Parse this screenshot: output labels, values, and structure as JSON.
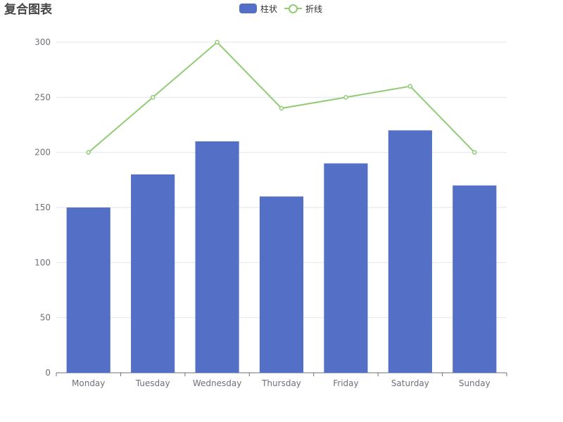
{
  "title": "复合图表",
  "legend": {
    "bar_label": "柱状",
    "line_label": "折线"
  },
  "colors": {
    "bar": "#5470c6",
    "line": "#91cc75",
    "axis": "#6e7079",
    "grid": "#e0e6f1"
  },
  "chart_data": {
    "type": "bar",
    "title": "复合图表",
    "categories": [
      "Monday",
      "Tuesday",
      "Wednesday",
      "Thursday",
      "Friday",
      "Saturday",
      "Sunday"
    ],
    "series": [
      {
        "name": "柱状",
        "type": "bar",
        "values": [
          150,
          180,
          210,
          160,
          190,
          220,
          170
        ]
      },
      {
        "name": "折线",
        "type": "line",
        "values": [
          200,
          250,
          300,
          240,
          250,
          260,
          200
        ]
      }
    ],
    "xlabel": "",
    "ylabel": "",
    "ylim": [
      0,
      300
    ],
    "yticks": [
      0,
      50,
      100,
      150,
      200,
      250,
      300
    ],
    "grid": true,
    "legend_position": "top-center"
  }
}
